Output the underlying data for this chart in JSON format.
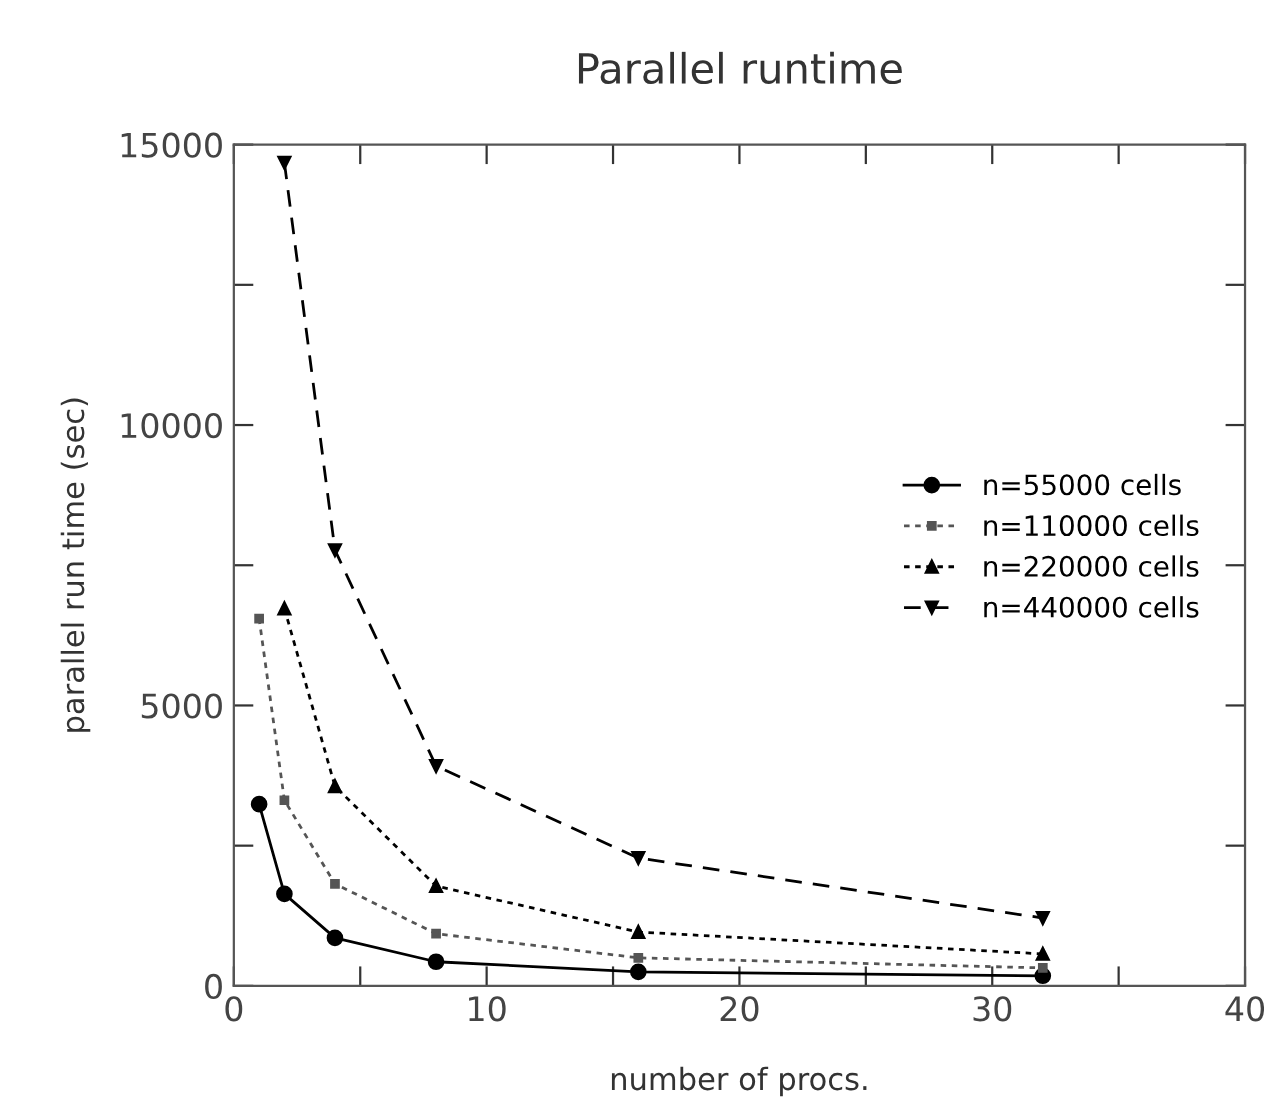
{
  "chart_data": {
    "type": "line",
    "title": "Parallel runtime",
    "xlabel": "number of procs.",
    "ylabel": "parallel run time (sec)",
    "xlim": [
      0,
      40
    ],
    "ylim": [
      0,
      15000
    ],
    "xticks": [
      0,
      {
        "value": 5,
        "label": null
      },
      10,
      {
        "value": 15,
        "label": null
      },
      20,
      {
        "value": 25,
        "label": null
      },
      30,
      {
        "value": 35,
        "label": null
      },
      40
    ],
    "yticks": [
      0,
      {
        "value": 2500,
        "label": null
      },
      5000,
      {
        "value": 7500,
        "label": null
      },
      10000,
      {
        "value": 12500,
        "label": null
      },
      15000
    ],
    "grid": false,
    "legend": "right",
    "series": [
      {
        "name": "n=55000 cells",
        "color": "#000000",
        "marker": "circle",
        "line_style": "solid",
        "x": [
          1,
          2,
          4,
          8,
          16,
          32
        ],
        "values": [
          3240,
          1640,
          855,
          430,
          250,
          180
        ]
      },
      {
        "name": "n=110000 cells",
        "color": "#555555",
        "marker": "square",
        "line_style": "dotted",
        "x": [
          1,
          2,
          4,
          8,
          16,
          32
        ],
        "values": [
          6550,
          3310,
          1820,
          930,
          500,
          320
        ]
      },
      {
        "name": "n=220000 cells",
        "color": "#000000",
        "marker": "triangle",
        "line_style": "dotted",
        "x": [
          2,
          4,
          8,
          16,
          32
        ],
        "values": [
          6730,
          3560,
          1780,
          960,
          570
        ]
      },
      {
        "name": "n=440000 cells",
        "color": "#000000",
        "marker": "triangle_down",
        "line_style": "dashed",
        "x": [
          2,
          4,
          8,
          16,
          32
        ],
        "values": [
          14680,
          7770,
          3920,
          2280,
          1210
        ]
      }
    ]
  }
}
